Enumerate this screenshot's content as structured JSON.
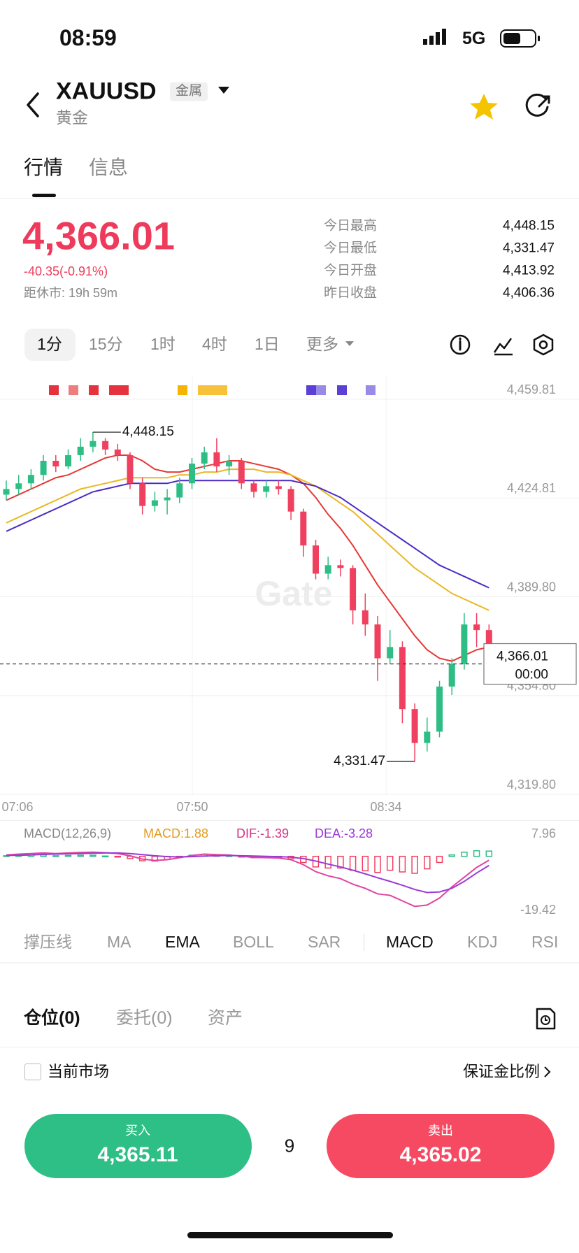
{
  "status_bar": {
    "time": "08:59",
    "network": "5G"
  },
  "header": {
    "symbol": "XAUUSD",
    "tag": "金属",
    "name": "黄金"
  },
  "tabs": [
    "行情",
    "信息"
  ],
  "quote": {
    "price": "4,366.01",
    "change": "-40.35(-0.91%)",
    "countdown": "距休市: 19h 59m"
  },
  "stats": [
    {
      "label": "今日最高",
      "value": "4,448.15"
    },
    {
      "label": "今日最低",
      "value": "4,331.47"
    },
    {
      "label": "今日开盘",
      "value": "4,413.92"
    },
    {
      "label": "昨日收盘",
      "value": "4,406.36"
    }
  ],
  "intervals": [
    "1分",
    "15分",
    "1时",
    "4时",
    "1日",
    "更多"
  ],
  "watermark": "Gate",
  "chart_data": [
    {
      "type": "candlestick",
      "up_color": "#2ebd85",
      "down_color": "#f0405f",
      "grid": true,
      "ylim": [
        4319.8,
        4459.81
      ],
      "yticks": [
        {
          "value": 4459.81,
          "label": "4,459.81"
        },
        {
          "value": 4424.81,
          "label": "4,424.81"
        },
        {
          "value": 4389.8,
          "label": "4,389.80"
        },
        {
          "value": 4354.8,
          "label": "4,354.80"
        },
        {
          "value": 4319.8,
          "label": "4,319.80"
        }
      ],
      "x_labels": [
        "07:06",
        "07:50",
        "08:34"
      ],
      "ohlc": [
        [
          4426,
          4431,
          4424,
          4428
        ],
        [
          4428,
          4433,
          4426,
          4430
        ],
        [
          4430,
          4435,
          4428,
          4433
        ],
        [
          4433,
          4440,
          4431,
          4438
        ],
        [
          4438,
          4440,
          4434,
          4436
        ],
        [
          4436,
          4442,
          4435,
          4440
        ],
        [
          4440,
          4446,
          4438,
          4443
        ],
        [
          4443,
          4448.15,
          4441,
          4445
        ],
        [
          4445,
          4446,
          4440,
          4442
        ],
        [
          4442,
          4444,
          4438,
          4440
        ],
        [
          4440,
          4441,
          4428,
          4430
        ],
        [
          4430,
          4432,
          4419,
          4422
        ],
        [
          4422,
          4427,
          4420,
          4424
        ],
        [
          4424,
          4428,
          4419,
          4425
        ],
        [
          4425,
          4432,
          4423,
          4430
        ],
        [
          4430,
          4439,
          4428,
          4437
        ],
        [
          4437,
          4443,
          4435,
          4441
        ],
        [
          4441,
          4446,
          4434,
          4436
        ],
        [
          4436,
          4440,
          4433,
          4438
        ],
        [
          4438,
          4439,
          4428,
          4430
        ],
        [
          4430,
          4431,
          4425,
          4427
        ],
        [
          4427,
          4431,
          4425,
          4429
        ],
        [
          4429,
          4431,
          4426,
          4428
        ],
        [
          4428,
          4429,
          4417,
          4420
        ],
        [
          4420,
          4421,
          4404,
          4408
        ],
        [
          4408,
          4410,
          4396,
          4398
        ],
        [
          4398,
          4404,
          4396,
          4401
        ],
        [
          4401,
          4403,
          4397,
          4400
        ],
        [
          4400,
          4401,
          4380,
          4385
        ],
        [
          4385,
          4391,
          4376,
          4380
        ],
        [
          4380,
          4383,
          4360,
          4368
        ],
        [
          4368,
          4378,
          4366,
          4372
        ],
        [
          4372,
          4374,
          4345,
          4350
        ],
        [
          4350,
          4352,
          4331.47,
          4338
        ],
        [
          4338,
          4347,
          4335,
          4342
        ],
        [
          4342,
          4360,
          4340,
          4358
        ],
        [
          4358,
          4368,
          4355,
          4366
        ],
        [
          4366,
          4384,
          4364,
          4380
        ],
        [
          4380,
          4384,
          4372,
          4378
        ],
        [
          4378,
          4380,
          4363,
          4366.01
        ]
      ],
      "lines": [
        {
          "color": "#e53935",
          "values": [
            4424,
            4426,
            4428,
            4430,
            4432,
            4433,
            4435,
            4437,
            4439,
            4440,
            4440,
            4438,
            4435,
            4434,
            4434,
            4435,
            4436,
            4437,
            4438,
            4438,
            4437,
            4436,
            4435,
            4433,
            4430,
            4425,
            4419,
            4414,
            4408,
            4401,
            4394,
            4388,
            4382,
            4376,
            4371,
            4368,
            4367,
            4369,
            4371,
            4372
          ]
        },
        {
          "color": "#e9b824",
          "values": [
            4416,
            4418,
            4420,
            4422,
            4424,
            4426,
            4428,
            4429,
            4430,
            4431,
            4432,
            4432,
            4432,
            4432,
            4433,
            4433,
            4434,
            4434,
            4435,
            4435,
            4435,
            4434,
            4434,
            4433,
            4431,
            4429,
            4426,
            4423,
            4420,
            4416,
            4412,
            4408,
            4404,
            4400,
            4397,
            4394,
            4391,
            4389,
            4387,
            4385
          ]
        },
        {
          "color": "#4a2bc4",
          "values": [
            4413,
            4415,
            4417,
            4419,
            4421,
            4423,
            4425,
            4427,
            4428,
            4429,
            4430,
            4430,
            4430,
            4430,
            4431,
            4431,
            4431,
            4431,
            4431,
            4431,
            4431,
            4431,
            4431,
            4431,
            4430,
            4429,
            4427,
            4425,
            4422,
            4419,
            4416,
            4413,
            4410,
            4407,
            4404,
            4401,
            4399,
            4397,
            4395,
            4393
          ]
        }
      ],
      "annotations": [
        {
          "value": 4448.15,
          "label": "4,448.15"
        },
        {
          "value": 4331.47,
          "label": "4,331.47"
        }
      ],
      "last": {
        "value": 4366.01,
        "label": "4,366.01",
        "time": "00:00"
      }
    },
    {
      "type": "macd",
      "title": "MACD(12,26,9)",
      "up_color": "#2ebd85",
      "down_color": "#f0405f",
      "legend": [
        {
          "label": "MACD:1.88",
          "color": "#e49b1d"
        },
        {
          "label": "DIF:-1.39",
          "color": "#d63384"
        },
        {
          "label": "DEA:-3.28",
          "color": "#9b3ad6"
        }
      ],
      "ylim": [
        -19.42,
        7.96
      ],
      "yticks": [
        7.96,
        -19.42
      ],
      "histogram": [
        0.2,
        0.4,
        0.5,
        0.5,
        0.2,
        0.3,
        0.4,
        0.4,
        0.1,
        -0.2,
        -0.8,
        -1.6,
        -1.7,
        -1.1,
        -0.3,
        0.4,
        0.7,
        0.4,
        0.2,
        -0.2,
        -0.5,
        -0.5,
        -0.5,
        -0.9,
        -2.2,
        -3.8,
        -4.2,
        -4.2,
        -5.0,
        -5.2,
        -5.8,
        -5.0,
        -5.6,
        -6.1,
        -4.5,
        -2.2,
        0.5,
        1.5,
        2.0,
        1.88
      ],
      "series": [
        {
          "color": "#e0449e",
          "values": [
            0.5,
            0.8,
            1.0,
            1.2,
            1.0,
            1.2,
            1.4,
            1.5,
            1.3,
            1.0,
            0.2,
            -1.0,
            -1.5,
            -1.2,
            -0.5,
            0.3,
            0.8,
            0.6,
            0.5,
            0.0,
            -0.4,
            -0.5,
            -0.6,
            -1.2,
            -3.0,
            -5.5,
            -7.0,
            -8.0,
            -10.0,
            -11.5,
            -13.5,
            -14.0,
            -16.0,
            -18.0,
            -17.5,
            -15.0,
            -11.0,
            -7.5,
            -4.0,
            -1.39
          ]
        },
        {
          "color": "#9b3ad6",
          "values": [
            0.3,
            0.4,
            0.5,
            0.7,
            0.8,
            0.9,
            1.0,
            1.1,
            1.2,
            1.2,
            1.0,
            0.6,
            0.2,
            -0.1,
            -0.2,
            -0.1,
            0.1,
            0.2,
            0.3,
            0.2,
            0.1,
            0.0,
            -0.1,
            -0.3,
            -0.8,
            -1.7,
            -2.8,
            -3.8,
            -5.0,
            -6.3,
            -7.7,
            -9.0,
            -10.4,
            -11.9,
            -13.0,
            -12.8,
            -11.5,
            -9.0,
            -6.0,
            -3.28
          ]
        }
      ]
    }
  ],
  "indicators": [
    "撑压线",
    "MA",
    "EMA",
    "BOLL",
    "SAR",
    "MACD",
    "KDJ",
    "RSI"
  ],
  "orders": {
    "tabs": [
      "仓位(0)",
      "委托(0)",
      "资产"
    ],
    "filter": "当前市场",
    "margin": "保证金比例"
  },
  "trade": {
    "buy": {
      "label": "买入",
      "price": "4,365.11"
    },
    "quantity": "9",
    "sell": {
      "label": "卖出",
      "price": "4,365.02"
    }
  }
}
